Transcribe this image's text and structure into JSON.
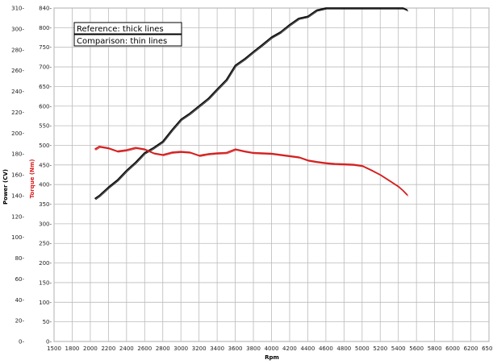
{
  "chart_data": {
    "type": "line",
    "xlabel": "Rpm",
    "ylabel_left_outer": "Power (CV)",
    "ylabel_left_inner": "Torque (Nm)",
    "x_ticks": [
      "1500",
      "1800",
      "2000",
      "2200",
      "2400",
      "2600",
      "2800",
      "3000",
      "3200",
      "3400",
      "3600",
      "3800",
      "4000",
      "4200",
      "4400",
      "4600",
      "4800",
      "5000",
      "5200",
      "5400",
      "5600",
      "5800",
      "6000",
      "6200",
      "6500"
    ],
    "power_ticks": [
      "0",
      "20",
      "40",
      "60",
      "80",
      "100",
      "120",
      "140",
      "160",
      "180",
      "200",
      "220",
      "240",
      "260",
      "280",
      "300",
      "310"
    ],
    "torque_ticks": [
      "0",
      "50",
      "100",
      "150",
      "200",
      "250",
      "300",
      "350",
      "400",
      "450",
      "500",
      "550",
      "600",
      "650",
      "700",
      "750",
      "800",
      "840"
    ],
    "legend": [
      "Reference: thick lines",
      "Comparison: thin lines"
    ],
    "colors": {
      "power": "#111111",
      "torque": "#d42020",
      "grid": "#bbbbbb"
    },
    "series": [
      {
        "name": "Power",
        "axis": "power",
        "x": [
          2050,
          2100,
          2200,
          2300,
          2400,
          2500,
          2600,
          2700,
          2800,
          2900,
          3000,
          3100,
          3200,
          3300,
          3400,
          3500,
          3600,
          3700,
          3800,
          3900,
          4000,
          4100,
          4200,
          4300,
          4400,
          4500,
          4600,
          4700,
          4800,
          4900,
          4950,
          5000,
          5100,
          5200,
          5300,
          5400,
          5450,
          5500
        ],
        "values": [
          137,
          140,
          148,
          155,
          164,
          172,
          181,
          186,
          192,
          203,
          213,
          219,
          226,
          233,
          242,
          251,
          265,
          271,
          278,
          285,
          292,
          297,
          302,
          305,
          306,
          309,
          312,
          317,
          323,
          328,
          330,
          331,
          329,
          326,
          324,
          319,
          316,
          309
        ]
      },
      {
        "name": "Torque",
        "axis": "torque",
        "x": [
          2050,
          2100,
          2200,
          2300,
          2400,
          2500,
          2600,
          2700,
          2800,
          2900,
          3000,
          3100,
          3200,
          3300,
          3400,
          3500,
          3600,
          3700,
          3800,
          3900,
          4000,
          4100,
          4200,
          4300,
          4400,
          4500,
          4600,
          4700,
          4800,
          4900,
          5000,
          5100,
          5200,
          5300,
          5400,
          5450,
          5500
        ],
        "values": [
          490,
          497,
          493,
          485,
          488,
          494,
          490,
          480,
          476,
          482,
          484,
          482,
          474,
          478,
          480,
          481,
          490,
          485,
          481,
          480,
          479,
          476,
          473,
          470,
          462,
          458,
          455,
          453,
          452,
          451,
          448,
          437,
          425,
          410,
          395,
          385,
          373
        ]
      }
    ],
    "power_range": [
      0,
      310
    ],
    "torque_range": [
      0,
      840
    ],
    "grid": true
  }
}
